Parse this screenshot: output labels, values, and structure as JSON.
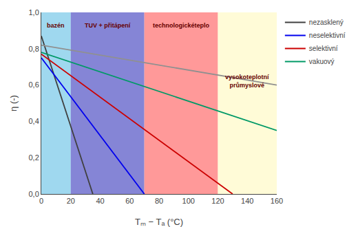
{
  "chart_data": {
    "type": "line",
    "xlabel": "Tₘ − Tₐ (°C)",
    "ylabel": "η (-)",
    "xlim": [
      0,
      160
    ],
    "ylim": [
      0.0,
      1.0
    ],
    "xticks": [
      0,
      20,
      40,
      60,
      80,
      100,
      120,
      140,
      160
    ],
    "yticks": [
      {
        "value": 0.0,
        "label": "0,0"
      },
      {
        "value": 0.2,
        "label": "0,2"
      },
      {
        "value": 0.4,
        "label": "0,4"
      },
      {
        "value": 0.6,
        "label": "0,6"
      },
      {
        "value": 0.8,
        "label": "0,8"
      },
      {
        "value": 1.0,
        "label": "1,0"
      }
    ],
    "grid": false,
    "legend": "upper right",
    "zones": [
      {
        "xmin": 0,
        "xmax": 20,
        "color": "#87CEEB"
      },
      {
        "xmin": 20,
        "xmax": 70,
        "color": "#6666CC"
      },
      {
        "xmin": 70,
        "xmax": 120,
        "color": "#FF8080"
      },
      {
        "xmin": 120,
        "xmax": 160,
        "color": "#FFFACD"
      }
    ],
    "annotations": [
      {
        "text": "bazén",
        "x": 10,
        "y": 0.955,
        "color": "#660000"
      },
      {
        "text": "TUV + přitápení",
        "x": 45,
        "y": 0.955,
        "color": "#660000"
      },
      {
        "text": "technologickéteplo",
        "x": 95,
        "y": 0.955,
        "color": "#660000"
      },
      {
        "text": "vysokoteplotní\nprůmyslové",
        "x": 140,
        "y": 0.67,
        "color": "#660000"
      }
    ],
    "series": [
      {
        "name": "nezasklený",
        "color": "#404040",
        "x": [
          0,
          35
        ],
        "values": [
          0.87,
          0.0
        ]
      },
      {
        "name": "neselektivní",
        "color": "#0000EE",
        "x": [
          0,
          70
        ],
        "values": [
          0.75,
          0.0
        ]
      },
      {
        "name": "selektivní",
        "color": "#CC0000",
        "x": [
          0,
          130
        ],
        "values": [
          0.77,
          0.0
        ]
      },
      {
        "name": "vakuový",
        "color": "#009966",
        "x": [
          0,
          160
        ],
        "values": [
          0.78,
          0.35
        ]
      },
      {
        "color": "#909090",
        "x": [
          0,
          160
        ],
        "values": [
          0.82,
          0.6
        ]
      }
    ]
  }
}
